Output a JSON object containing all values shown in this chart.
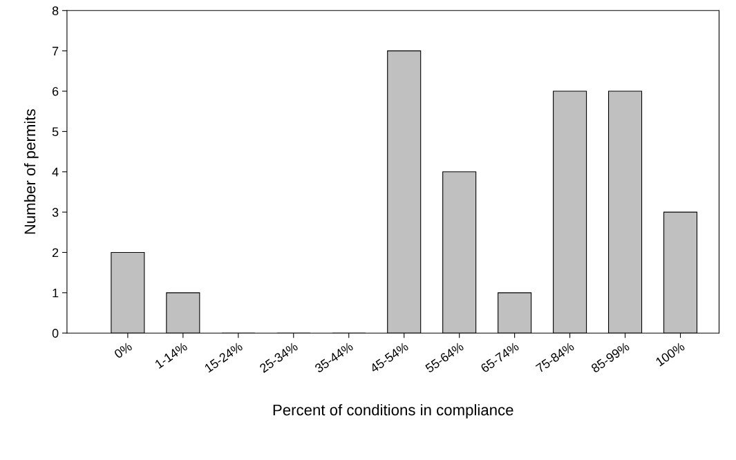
{
  "chart_data": {
    "type": "bar",
    "xlabel": "Percent of conditions in compliance",
    "ylabel": "Number of permits",
    "categories": [
      "0%",
      "1-14%",
      "15-24%",
      "25-34%",
      "35-44%",
      "45-54%",
      "55-64%",
      "65-74%",
      "75-84%",
      "85-99%",
      "100%"
    ],
    "values": [
      2,
      1,
      0,
      0,
      0,
      7,
      4,
      1,
      6,
      6,
      3
    ],
    "color": "#c0c0c0",
    "ylim": [
      0,
      8
    ],
    "yticks": [
      0,
      1,
      2,
      3,
      4,
      5,
      6,
      7,
      8
    ],
    "grid": false,
    "legend": false
  }
}
